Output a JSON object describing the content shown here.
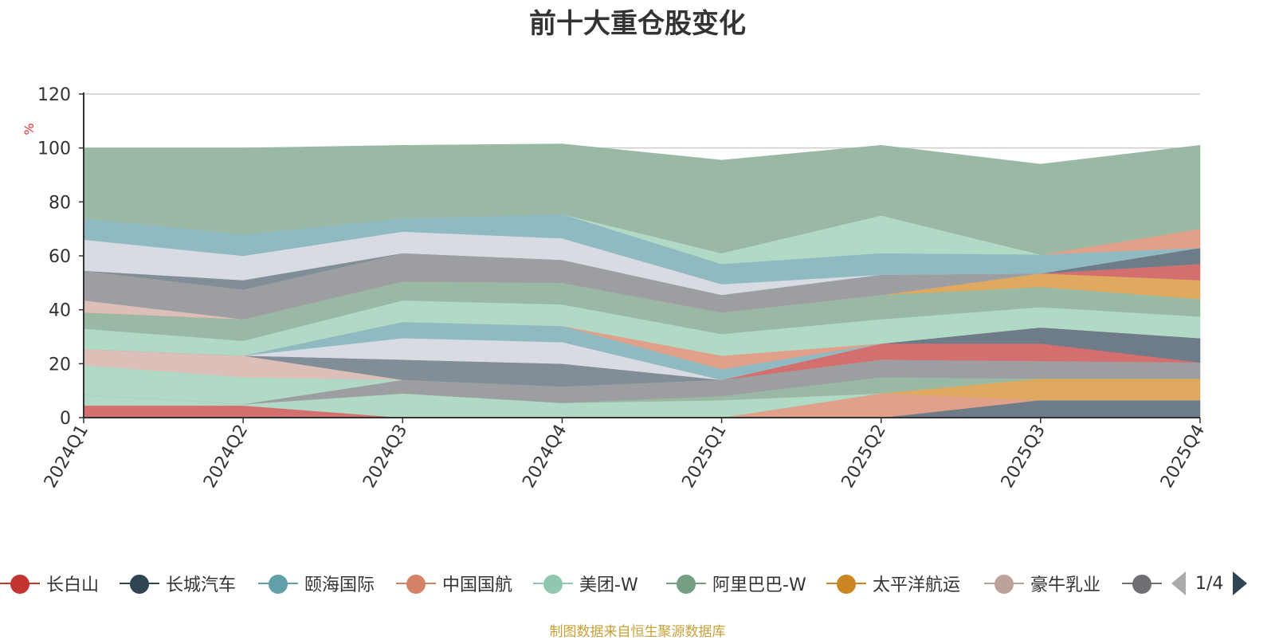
{
  "chart_data": {
    "type": "area",
    "title": "前十大重仓股变化",
    "ylabel": "%",
    "ylim": [
      0,
      120
    ],
    "yticks": [
      0,
      20,
      40,
      60,
      80,
      100,
      120
    ],
    "stacked": true,
    "grid": true,
    "legend_position": "bottom",
    "categories": [
      "2024Q1",
      "2024Q2",
      "2024Q3",
      "2024Q4",
      "2025Q1",
      "2025Q2",
      "2025Q3",
      "2025Q4"
    ],
    "series": [
      {
        "name": "长城汽车",
        "color": "#6e7b88",
        "values": [
          0,
          0,
          0,
          0,
          0,
          0,
          6.5,
          6.5
        ]
      },
      {
        "name": "中国国航",
        "color": "#e0a08a",
        "values": [
          0,
          0,
          0,
          0,
          0,
          9,
          0,
          0
        ]
      },
      {
        "name": "长白山",
        "color": "#d46f6f",
        "values": [
          4.5,
          4.5,
          0,
          0,
          0,
          0,
          0,
          0
        ]
      },
      {
        "name": "美团-W",
        "color": "#b0d9c6",
        "values": [
          4,
          0.5,
          9,
          5.5,
          6.5,
          0,
          0,
          0
        ]
      },
      {
        "name": "太平洋航运",
        "color": "#dfa95f",
        "values": [
          0,
          0,
          0,
          0,
          0,
          0,
          8,
          8
        ]
      },
      {
        "name": "阿里巴巴-W",
        "color": "#9ab9a5",
        "values": [
          0,
          0,
          0,
          0,
          1.5,
          6,
          0,
          0
        ]
      },
      {
        "name": "",
        "color": "#9c9ea2",
        "values": [
          0,
          0,
          5,
          6,
          6,
          6.5,
          6.5,
          6
        ]
      },
      {
        "name": "颐海国际",
        "color": "#8fbac2",
        "values": [
          0,
          0,
          0,
          0,
          0,
          0,
          0,
          0
        ]
      },
      {
        "name": "豪牛乳业",
        "color": "#b0d9c6",
        "values": [
          11,
          10,
          0,
          0,
          0,
          0,
          0,
          0
        ]
      },
      {
        "name": "",
        "color": "#dcbfb8",
        "values": [
          6,
          8,
          0,
          0,
          0,
          0,
          0,
          0
        ]
      },
      {
        "name": "",
        "color": "#818e97",
        "values": [
          0,
          0,
          7.5,
          8.5,
          0,
          0,
          0,
          0
        ]
      },
      {
        "name": "",
        "color": "#d46f6f",
        "values": [
          0,
          0,
          0,
          0,
          0,
          6,
          6.5,
          0
        ]
      },
      {
        "name": "",
        "color": "#6e7b88",
        "values": [
          0,
          0,
          0,
          0,
          0,
          0,
          6,
          9
        ]
      },
      {
        "name": "",
        "color": "#a0a2a6",
        "values": [
          0,
          0,
          0,
          0,
          0,
          0,
          0,
          0
        ]
      },
      {
        "name": "",
        "color": "#d8dbe2",
        "values": [
          0,
          0,
          8,
          8,
          0,
          0,
          0,
          0
        ]
      },
      {
        "name": "",
        "color": "#8fbac2",
        "values": [
          0,
          0,
          6,
          6,
          4,
          0,
          0,
          0
        ]
      },
      {
        "name": "",
        "color": "#e0a08a",
        "values": [
          0,
          0,
          0,
          0,
          5,
          0,
          0,
          0
        ]
      },
      {
        "name": "",
        "color": "#b0d9c6",
        "values": [
          7.5,
          5.5,
          8,
          8,
          8,
          9,
          7.5,
          8
        ]
      },
      {
        "name": "",
        "color": "#9ab9a5",
        "values": [
          6,
          8,
          7,
          8,
          8,
          9,
          7.5,
          6.5
        ]
      },
      {
        "name": "",
        "color": "#dfa95f",
        "values": [
          0,
          0,
          0,
          0,
          0,
          0,
          5,
          7
        ]
      },
      {
        "name": "",
        "color": "#d46f6f",
        "values": [
          0,
          0,
          0,
          0,
          0,
          0,
          0,
          6
        ]
      },
      {
        "name": "",
        "color": "#dcbfb8",
        "values": [
          4.5,
          0,
          0,
          0,
          0,
          0,
          0,
          0
        ]
      },
      {
        "name": "",
        "color": "#9c9ea2",
        "values": [
          11,
          11,
          10.5,
          8.5,
          6.5,
          7.5,
          0,
          0
        ]
      },
      {
        "name": "",
        "color": "#818e97",
        "values": [
          0,
          3.5,
          0,
          0,
          0,
          0,
          0,
          0
        ]
      },
      {
        "name": "",
        "color": "#6e7b88",
        "values": [
          0,
          0,
          0,
          0,
          0,
          0,
          0,
          6
        ]
      },
      {
        "name": "",
        "color": "#d8dbe2",
        "values": [
          11.5,
          9,
          8,
          8,
          4,
          0,
          0,
          0
        ]
      },
      {
        "name": "",
        "color": "#8fbac2",
        "values": [
          8,
          8,
          5,
          9,
          7.5,
          8,
          7,
          0
        ]
      },
      {
        "name": "",
        "color": "#b0d9c6",
        "values": [
          0,
          0,
          0,
          0,
          4,
          14,
          0,
          0
        ]
      },
      {
        "name": "",
        "color": "#e0a08a",
        "values": [
          0,
          0,
          0,
          0,
          0,
          0,
          0,
          7
        ]
      },
      {
        "name": "",
        "color": "#9ab9a5",
        "values": [
          26,
          32,
          27,
          26,
          34.5,
          26,
          33.5,
          31
        ]
      }
    ]
  },
  "legend": {
    "items": [
      {
        "label": "长白山",
        "color": "#c23531"
      },
      {
        "label": "长城汽车",
        "color": "#2f4554"
      },
      {
        "label": "颐海国际",
        "color": "#61a0a8"
      },
      {
        "label": "中国国航",
        "color": "#d48265"
      },
      {
        "label": "美团-W",
        "color": "#91c7ae"
      },
      {
        "label": "阿里巴巴-W",
        "color": "#749f83"
      },
      {
        "label": "太平洋航运",
        "color": "#ca8622"
      },
      {
        "label": "豪牛乳业",
        "color": "#bda29a"
      },
      {
        "label": "",
        "color": "#6e7074"
      }
    ],
    "pager": "1/4"
  },
  "footer": "制图数据来自恒生聚源数据库"
}
